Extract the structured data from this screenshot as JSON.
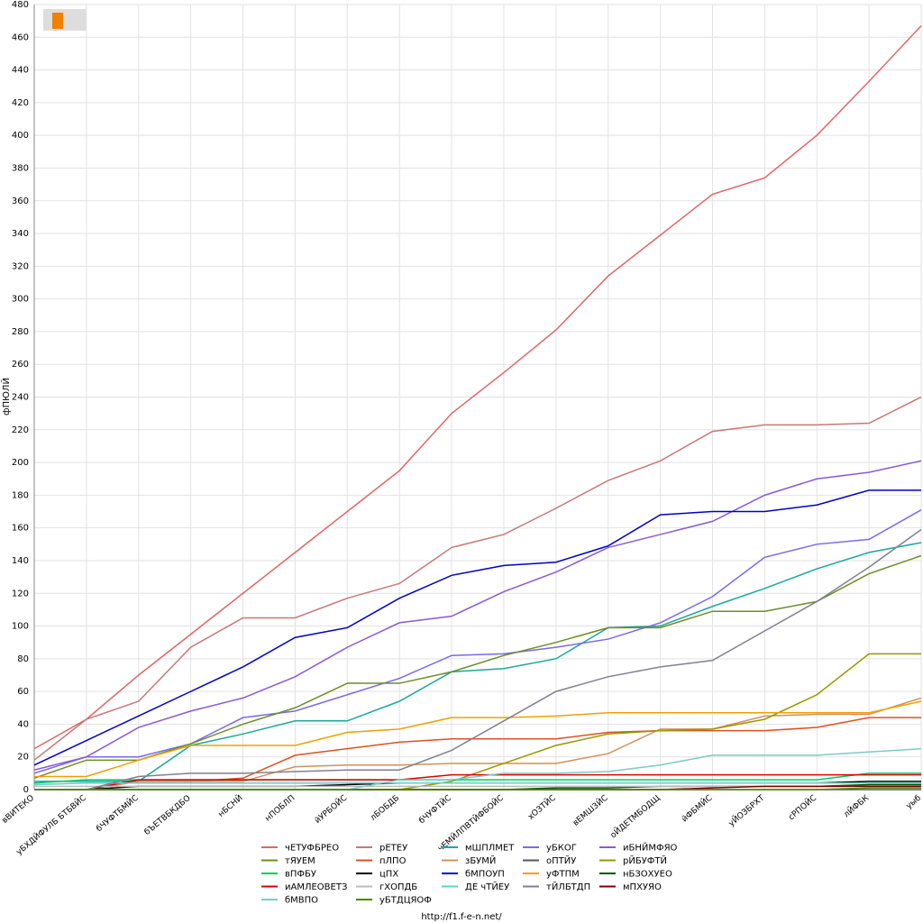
{
  "chart_data": {
    "type": "line",
    "ylabel": "фПЮЛЙ",
    "footer": "http://f1.f-e-n.net/",
    "categories": [
      "вВИТЕКО",
      "уБХДЙФУЛБ БТБВЙС",
      "бЧУФТБМЙС",
      "бЪЕТВБКДБО",
      "нБСНЙ",
      "нПОБЛП",
      "йУРБОЙС",
      "лБОБДБ",
      "бЧУФТЙС",
      "чЕМЙЛПВТЙФБОЙС",
      "хОЗТЙС",
      "вЕМШЗЙС",
      "оЙДЕТМБОДЩ",
      "йФБМЙС",
      "уЙОЗБРХТ",
      "сРПОЙС",
      "лЙФБК",
      "уыб"
    ],
    "ylim": [
      0,
      480
    ],
    "yticks": [
      0,
      20,
      40,
      60,
      80,
      100,
      120,
      140,
      160,
      180,
      200,
      220,
      240,
      260,
      280,
      300,
      320,
      340,
      360,
      380,
      400,
      420,
      440,
      460,
      480
    ],
    "grid": true,
    "series": [
      {
        "name": "чЕТУФБРЕО",
        "color": "#e06666",
        "values": [
          25,
          43,
          70,
          95,
          120,
          145,
          170,
          195,
          230,
          255,
          281,
          314,
          339,
          364,
          374,
          400,
          433,
          467
        ]
      },
      {
        "name": "рЕТЕУ",
        "color": "#c87878",
        "values": [
          18,
          43,
          54,
          87,
          105,
          105,
          117,
          126,
          148,
          156,
          172,
          189,
          201,
          219,
          223,
          223,
          224,
          240
        ]
      },
      {
        "name": "мШПЛМЕТ",
        "color": "#1aa89e",
        "values": [
          5,
          5,
          5,
          27,
          34,
          42,
          42,
          54,
          72,
          74,
          80,
          99,
          100,
          112,
          123,
          135,
          145,
          151
        ]
      },
      {
        "name": "уБКОГ",
        "color": "#7b68ee",
        "values": [
          10,
          20,
          20,
          28,
          44,
          48,
          58,
          68,
          82,
          83,
          87,
          92,
          102,
          118,
          142,
          150,
          153,
          171
        ]
      },
      {
        "name": "иБНЙМФЯО",
        "color": "#8a5ad2",
        "values": [
          12,
          20,
          38,
          48,
          56,
          69,
          87,
          102,
          106,
          121,
          133,
          148,
          156,
          164,
          180,
          190,
          194,
          201
        ]
      },
      {
        "name": "тЯУЕМ",
        "color": "#6b8e23",
        "values": [
          7,
          18,
          18,
          28,
          40,
          50,
          65,
          65,
          72,
          82,
          90,
          99,
          99,
          109,
          109,
          115,
          132,
          143
        ]
      },
      {
        "name": "пЛПО",
        "color": "#e05020",
        "values": [
          0,
          0,
          5,
          5,
          7,
          21,
          25,
          29,
          31,
          31,
          31,
          35,
          36,
          36,
          36,
          38,
          44,
          44
        ]
      },
      {
        "name": "зБУМЙ",
        "color": "#d2915a",
        "values": [
          0,
          0,
          5,
          5,
          5,
          14,
          15,
          15,
          16,
          16,
          16,
          22,
          37,
          37,
          45,
          46,
          46,
          56
        ]
      },
      {
        "name": "оПТЙУ",
        "color": "#555566",
        "values": [
          0,
          0,
          0,
          0,
          0,
          0,
          0,
          0,
          0,
          0,
          0,
          0,
          0,
          0,
          0,
          0,
          0,
          0
        ]
      },
      {
        "name": "рЙБУФТЙ",
        "color": "#999900",
        "values": [
          0,
          0,
          0,
          0,
          0,
          0,
          0,
          0,
          5,
          16,
          27,
          34,
          36,
          37,
          43,
          58,
          83,
          83
        ]
      },
      {
        "name": "вПФБУ",
        "color": "#00cc66",
        "values": [
          4,
          6,
          6,
          6,
          6,
          6,
          6,
          6,
          6,
          6,
          6,
          6,
          6,
          6,
          6,
          6,
          10,
          10
        ]
      },
      {
        "name": "цПХ",
        "color": "#000000",
        "values": [
          0,
          0,
          2,
          2,
          2,
          2,
          3,
          4,
          4,
          4,
          4,
          4,
          4,
          4,
          4,
          4,
          5,
          5
        ]
      },
      {
        "name": "бМПОУП",
        "color": "#0000cc",
        "values": [
          15,
          30,
          45,
          60,
          75,
          93,
          99,
          117,
          131,
          137,
          139,
          149,
          168,
          170,
          170,
          174,
          183,
          183
        ]
      },
      {
        "name": "уФТПМ",
        "color": "#f0a000",
        "values": [
          8,
          8,
          18,
          27,
          27,
          27,
          35,
          37,
          44,
          44,
          45,
          47,
          47,
          47,
          47,
          47,
          47,
          54
        ]
      },
      {
        "name": "нБЗОХУЕО",
        "color": "#005500",
        "values": [
          0,
          0,
          0,
          0,
          0,
          0,
          0,
          0,
          0,
          0,
          1,
          1,
          2,
          2,
          2,
          2,
          3,
          3
        ]
      },
      {
        "name": "иАМЛЕОВЕТЗ",
        "color": "#dd0000",
        "values": [
          0,
          0,
          6,
          6,
          6,
          6,
          6,
          6,
          9,
          9,
          9,
          9,
          9,
          9,
          9,
          9,
          9,
          9
        ]
      },
      {
        "name": "гХОПДБ",
        "color": "#bbbbbb",
        "values": [
          2,
          2,
          2,
          2,
          2,
          2,
          2,
          2,
          2,
          2,
          2,
          2,
          2,
          2,
          2,
          2,
          2,
          2
        ]
      },
      {
        "name": "ДЕ чТЙЕУ",
        "color": "#66cccc",
        "values": [
          3,
          4,
          4,
          4,
          4,
          4,
          4,
          4,
          4,
          4,
          4,
          4,
          4,
          4,
          4,
          4,
          4,
          4
        ]
      },
      {
        "name": "тЙЛБТДП",
        "color": "#808090",
        "values": [
          0,
          0,
          8,
          10,
          10,
          11,
          12,
          12,
          24,
          42,
          60,
          69,
          75,
          79,
          97,
          115,
          136,
          159
        ]
      },
      {
        "name": "мПХУЯО",
        "color": "#800000",
        "values": [
          0,
          0,
          0,
          0,
          0,
          0,
          0,
          0,
          0,
          0,
          0,
          0,
          0,
          1,
          2,
          2,
          2,
          2
        ]
      },
      {
        "name": "бМВПО",
        "color": "#80c8c8",
        "values": [
          0,
          0,
          0,
          0,
          0,
          0,
          0,
          6,
          6,
          10,
          10,
          11,
          15,
          21,
          21,
          21,
          23,
          25
        ]
      },
      {
        "name": "уБТДЦЯОФ",
        "color": "#4a8a00",
        "values": [
          0,
          0,
          0,
          0,
          0,
          0,
          0,
          0,
          0,
          0,
          0,
          0,
          0,
          0,
          0,
          0,
          1,
          1
        ]
      }
    ]
  }
}
